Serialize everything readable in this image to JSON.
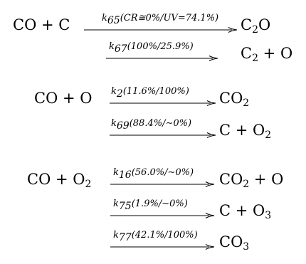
{
  "lines": [
    {
      "lhs_html": "CO + C",
      "label_html": "<span class=\"rk\">k</span><sub>65</sub>(<i>CR</i>≅0%/<i>UV</i>=74.1%)",
      "rhs_html": "C<sub>2</sub>O"
    },
    {
      "lhs_html": "",
      "label_html": "<span class=\"rk\">k</span><sub>67</sub>(100%/25.9%)",
      "rhs_html": "C<sub>2</sub> + O"
    },
    {
      "lhs_html": "CO + O",
      "label_html": "<span class=\"rk\">k</span><sub>2</sub>(11.6%/100%)",
      "rhs_html": "CO<sub>2</sub>"
    },
    {
      "lhs_html": "",
      "label_html": "<span class=\"rk\">k</span><sub>69</sub>(88.4%/∼0%)",
      "rhs_html": "C + O<sub>2</sub>"
    },
    {
      "lhs_html": "CO + O<sub>2</sub>",
      "label_html": "<span class=\"rk\">k</span><sub>16</sub>(56.0%/∼0%)",
      "rhs_html": "CO<sub>2</sub> + O"
    },
    {
      "lhs_html": "",
      "label_html": "<span class=\"rk\">k</span><sub>75</sub>(1.9%/∼0%)",
      "rhs_html": "C + O<sub>3</sub>"
    },
    {
      "lhs_html": "",
      "label_html": "<span class=\"rk\">k</span><sub>77</sub>(42.1%/100%)",
      "rhs_html": "CO<sub>3</sub>"
    }
  ]
}
